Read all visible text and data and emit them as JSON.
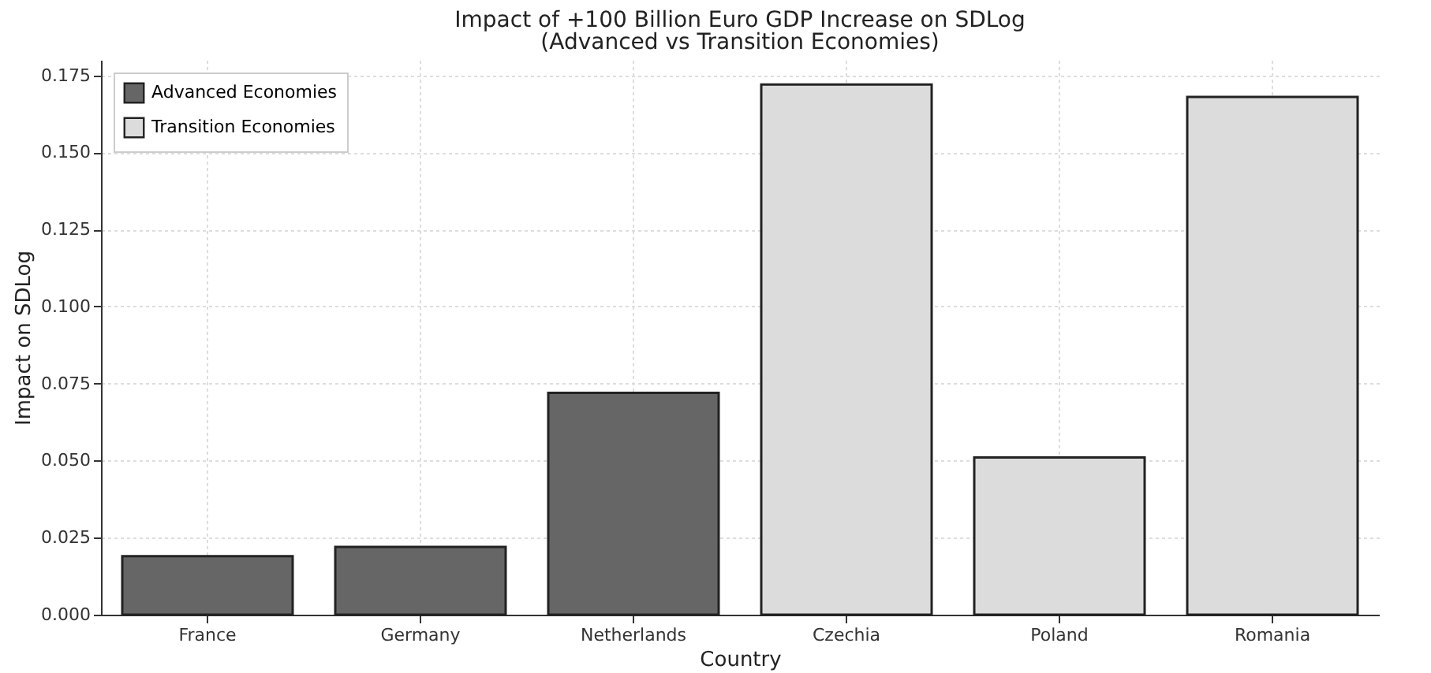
{
  "chart_data": {
    "type": "bar",
    "title": "Impact of +100 Billion Euro GDP Increase on SDLog",
    "subtitle": "(Advanced vs Transition Economies)",
    "xlabel": "Country",
    "ylabel": "Impact on SDLog",
    "categories": [
      "France",
      "Germany",
      "Netherlands",
      "Czechia",
      "Poland",
      "Romania"
    ],
    "series": [
      {
        "name": "Advanced Economies",
        "color": "#666666",
        "values": [
          0.019,
          0.022,
          0.072,
          null,
          null,
          null
        ]
      },
      {
        "name": "Transition Economies",
        "color": "#dcdcdc",
        "values": [
          null,
          null,
          null,
          0.172,
          0.051,
          0.168
        ]
      }
    ],
    "ylim": [
      0,
      0.18
    ],
    "yticks": [
      {
        "value": 0,
        "label": "0.000"
      },
      0.025,
      {
        "value": 0.05,
        "label": "0.050"
      },
      0.075,
      {
        "value": 0.1,
        "label": "0.100"
      },
      0.125,
      {
        "value": 0.15,
        "label": "0.150"
      },
      0.175
    ],
    "grid": true,
    "legend": "top left"
  }
}
